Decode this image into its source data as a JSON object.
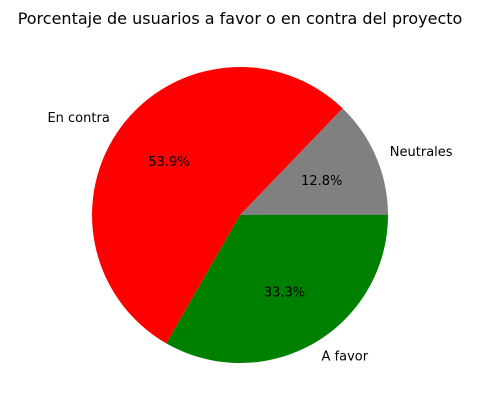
{
  "chart_data": {
    "type": "pie",
    "title": "Porcentaje de usuarios a favor o en contra del proyecto",
    "start_angle_deg": 0,
    "direction": "counterclockwise",
    "slices": [
      {
        "label": "Neutrales",
        "value": 12.8,
        "pct_label": "12.8%",
        "color": "#808080"
      },
      {
        "label": "En contra",
        "value": 53.9,
        "pct_label": "53.9%",
        "color": "#ff0000"
      },
      {
        "label": "A favor",
        "value": 33.3,
        "pct_label": "33.3%",
        "color": "#008000"
      }
    ]
  }
}
